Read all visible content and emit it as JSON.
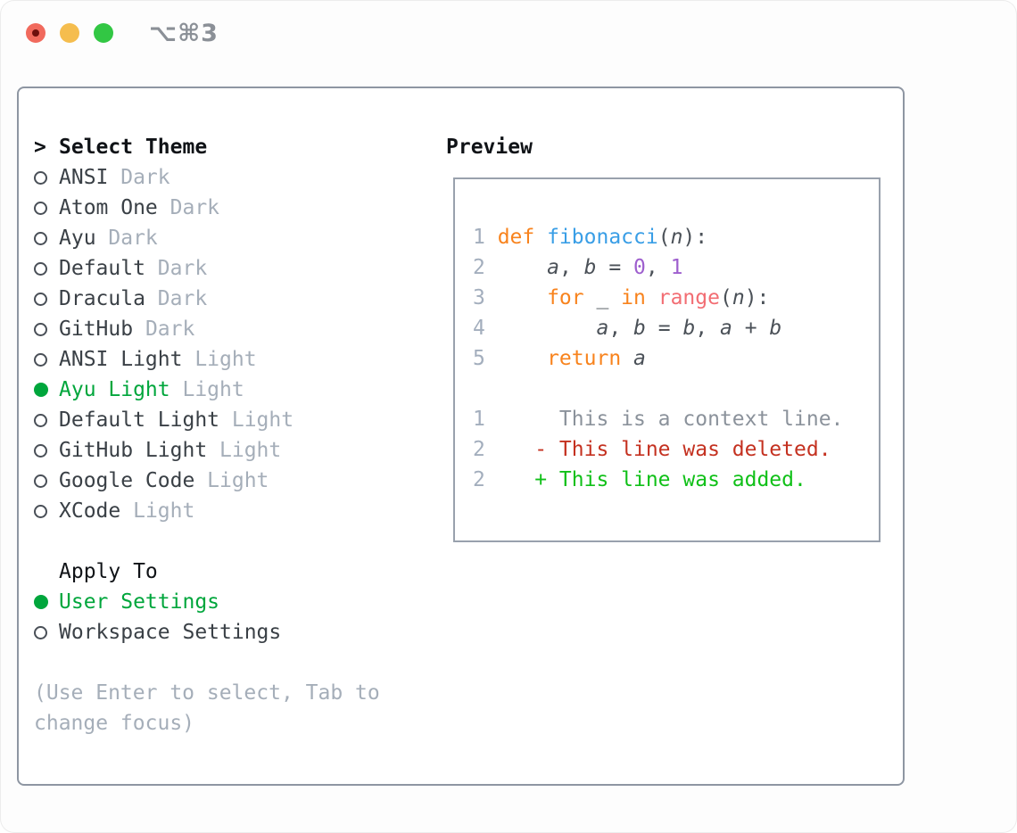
{
  "window": {
    "shortcut": "⌥⌘3"
  },
  "theme_picker": {
    "prompt": ">",
    "title": "Select Theme",
    "items": [
      {
        "name": "ANSI",
        "variant": "Dark",
        "selected": false
      },
      {
        "name": "Atom One",
        "variant": "Dark",
        "selected": false
      },
      {
        "name": "Ayu",
        "variant": "Dark",
        "selected": false
      },
      {
        "name": "Default",
        "variant": "Dark",
        "selected": false
      },
      {
        "name": "Dracula",
        "variant": "Dark",
        "selected": false
      },
      {
        "name": "GitHub",
        "variant": "Dark",
        "selected": false
      },
      {
        "name": "ANSI Light",
        "variant": "Light",
        "selected": false
      },
      {
        "name": "Ayu Light",
        "variant": "Light",
        "selected": true
      },
      {
        "name": "Default Light",
        "variant": "Light",
        "selected": false
      },
      {
        "name": "GitHub Light",
        "variant": "Light",
        "selected": false
      },
      {
        "name": "Google Code",
        "variant": "Light",
        "selected": false
      },
      {
        "name": "XCode",
        "variant": "Light",
        "selected": false
      }
    ]
  },
  "apply_to": {
    "title": "Apply To",
    "options": [
      {
        "label": "User Settings",
        "selected": true
      },
      {
        "label": "Workspace Settings",
        "selected": false
      }
    ]
  },
  "hint": {
    "line1": "(Use Enter to select, Tab to",
    "line2": "change focus)"
  },
  "preview": {
    "title": "Preview",
    "code_lines": [
      {
        "num": "1",
        "segments": [
          {
            "t": "def ",
            "c": "keyword"
          },
          {
            "t": "fibonacci",
            "c": "function"
          },
          {
            "t": "(",
            "c": "punct"
          },
          {
            "t": "n",
            "c": "variable",
            "i": true
          },
          {
            "t": "):",
            "c": "punct"
          }
        ]
      },
      {
        "num": "2",
        "segments": [
          {
            "t": "    ",
            "c": "punct"
          },
          {
            "t": "a",
            "c": "variable",
            "i": true
          },
          {
            "t": ", ",
            "c": "punct"
          },
          {
            "t": "b",
            "c": "variable",
            "i": true
          },
          {
            "t": " = ",
            "c": "punct"
          },
          {
            "t": "0",
            "c": "number"
          },
          {
            "t": ", ",
            "c": "punct"
          },
          {
            "t": "1",
            "c": "number"
          }
        ]
      },
      {
        "num": "3",
        "segments": [
          {
            "t": "    ",
            "c": "punct"
          },
          {
            "t": "for",
            "c": "keyword"
          },
          {
            "t": " _ ",
            "c": "punct"
          },
          {
            "t": "in",
            "c": "keyword"
          },
          {
            "t": " ",
            "c": "punct"
          },
          {
            "t": "range",
            "c": "builtin"
          },
          {
            "t": "(",
            "c": "punct"
          },
          {
            "t": "n",
            "c": "variable",
            "i": true
          },
          {
            "t": "):",
            "c": "punct"
          }
        ]
      },
      {
        "num": "4",
        "segments": [
          {
            "t": "        ",
            "c": "punct"
          },
          {
            "t": "a",
            "c": "variable",
            "i": true
          },
          {
            "t": ", ",
            "c": "punct"
          },
          {
            "t": "b",
            "c": "variable",
            "i": true
          },
          {
            "t": " = ",
            "c": "punct"
          },
          {
            "t": "b",
            "c": "variable",
            "i": true
          },
          {
            "t": ", ",
            "c": "punct"
          },
          {
            "t": "a",
            "c": "variable",
            "i": true
          },
          {
            "t": " + ",
            "c": "punct"
          },
          {
            "t": "b",
            "c": "variable",
            "i": true
          }
        ]
      },
      {
        "num": "5",
        "segments": [
          {
            "t": "    ",
            "c": "punct"
          },
          {
            "t": "return",
            "c": "keyword"
          },
          {
            "t": " ",
            "c": "punct"
          },
          {
            "t": "a",
            "c": "variable",
            "i": true
          }
        ]
      }
    ],
    "diff_lines": [
      {
        "num": "1",
        "marker": " ",
        "text": "This is a context line.",
        "type": "context"
      },
      {
        "num": "2",
        "marker": "-",
        "text": "This line was deleted.",
        "type": "deleted"
      },
      {
        "num": "2",
        "marker": "+",
        "text": "This line was added.",
        "type": "added"
      }
    ]
  },
  "colors": {
    "heading": "#101317",
    "text_dark": "#3a4046",
    "muted": "#a5aeb9",
    "green_select": "#00a63c",
    "radio_border": "#494f57",
    "panel_border": "#8e96a2",
    "preview_border": "#99a1ad",
    "linenum": "#a3aebd",
    "keyword": "#f8831d",
    "function": "#399ee6",
    "number": "#9e5fce",
    "builtin": "#f26d73",
    "code_default": "#4b5158",
    "diff_context": "#8b929b",
    "diff_deleted": "#c43120",
    "diff_added": "#10c018",
    "traffic_red": "#f16a5d",
    "traffic_red_dot": "#6d0f0d",
    "traffic_yellow": "#f5bd4e",
    "traffic_green": "#32c744",
    "shortcut": "#8b9097"
  }
}
